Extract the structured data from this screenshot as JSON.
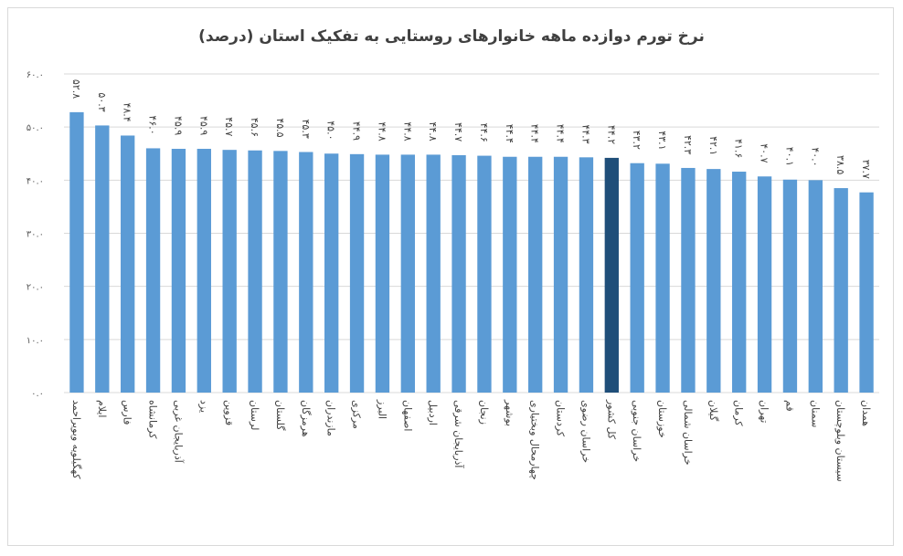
{
  "chart_data": {
    "type": "bar",
    "title": "نرخ تورم دوازده ماهه خانوارهای روستایی به تفکیک استان (درصد)",
    "ylim": [
      0,
      60
    ],
    "y_ticks": [
      "۰.۰",
      "۱۰.۰",
      "۲۰.۰",
      "۳۰.۰",
      "۴۰.۰",
      "۵۰.۰",
      "۶۰.۰"
    ],
    "grid": true,
    "categories": [
      "کهگیلویه وبویراحمد",
      "ایلام",
      "فارس",
      "کرمانشاه",
      "آذربایجان غربی",
      "یزد",
      "قزوین",
      "لرستان",
      "گلستان",
      "هرمزگان",
      "مازندران",
      "مرکزی",
      "البرز",
      "اصفهان",
      "اردبیل",
      "آذربایجان شرقی",
      "زنجان",
      "بوشهر",
      "چهارمحال وبختیاری",
      "کردستان",
      "خراسان رضوی",
      "کل کشور",
      "خراسان جنوبی",
      "خوزستان",
      "خراسان شمالی",
      "گیلان",
      "کرمان",
      "تهران",
      "قم",
      "سمنان",
      "سیستان وبلوچستان",
      "همدان"
    ],
    "values": [
      52.8,
      50.3,
      48.4,
      46.0,
      45.9,
      45.9,
      45.7,
      45.6,
      45.5,
      45.3,
      45.0,
      44.9,
      44.8,
      44.8,
      44.8,
      44.7,
      44.6,
      44.4,
      44.4,
      44.4,
      44.3,
      44.2,
      43.2,
      43.1,
      42.3,
      42.1,
      41.6,
      40.7,
      40.1,
      40.0,
      38.5,
      37.7
    ],
    "data_labels": [
      "۵۲.۸",
      "۵۰.۳",
      "۴۸.۴",
      "۴۶.۰",
      "۴۵.۹",
      "۴۵.۹",
      "۴۵.۷",
      "۴۵.۶",
      "۴۵.۵",
      "۴۵.۳",
      "۴۵.۰",
      "۴۴.۹",
      "۴۴.۸",
      "۴۴.۸",
      "۴۴.۸",
      "۴۴.۷",
      "۴۴.۶",
      "۴۴.۴",
      "۴۴.۴",
      "۴۴.۴",
      "۴۴.۳",
      "۴۴.۲",
      "۴۳.۲",
      "۴۳.۱",
      "۴۲.۳",
      "۴۲.۱",
      "۴۱.۶",
      "۴۰.۷",
      "۴۰.۱",
      "۴۰.۰",
      "۳۸.۵",
      "۳۷.۷"
    ],
    "highlight_category": "کل کشور",
    "colors": {
      "bar": "#5b9bd5",
      "highlight": "#1f4e79",
      "grid": "#d9d9d9"
    }
  }
}
